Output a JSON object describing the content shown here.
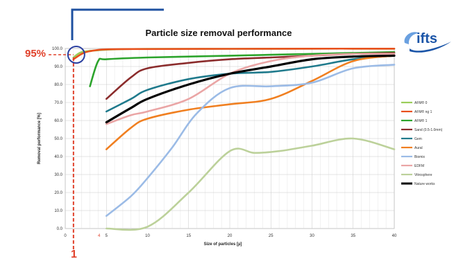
{
  "chart_data": {
    "type": "line",
    "title": "Particle size removal performance",
    "xlabel": "Size of particles [µ]",
    "ylabel": "Removal performance [%]",
    "xlim": [
      0,
      40
    ],
    "ylim": [
      0,
      100
    ],
    "x_ticks": [
      "0",
      "5",
      "10",
      "15",
      "20",
      "25",
      "30",
      "35",
      "40"
    ],
    "y_ticks": [
      "0.0",
      "10.0",
      "20.0",
      "30.0",
      "40.0",
      "50.0",
      "60.0",
      "70.0",
      "80.0",
      "90.0",
      "100.0"
    ],
    "grid": true,
    "legend_position": "right",
    "series": [
      {
        "name": "AFM® 0",
        "color": "#9acd5a",
        "x": [
          1,
          2,
          4,
          6,
          10,
          20,
          30,
          40
        ],
        "y": [
          95,
          98,
          99,
          99.5,
          99.8,
          99.8,
          99.9,
          99.9
        ]
      },
      {
        "name": "AFM® ng 1",
        "color": "#e8501c",
        "x": [
          1,
          2,
          3,
          5,
          10,
          20,
          30,
          40
        ],
        "y": [
          94,
          97,
          98.5,
          99.5,
          99.7,
          99.8,
          99.9,
          99.9
        ]
      },
      {
        "name": "AFM® 1",
        "color": "#2ca42c",
        "x": [
          3,
          4,
          5,
          10,
          20,
          30,
          40
        ],
        "y": [
          79,
          93,
          94,
          95,
          96,
          97,
          98
        ]
      },
      {
        "name": "Sand (0.5-1.0mm)",
        "color": "#8b2c2c",
        "x": [
          5,
          8,
          10,
          15,
          20,
          25,
          30,
          35,
          40
        ],
        "y": [
          72,
          84,
          89,
          92,
          94,
          95,
          96,
          97,
          97.5
        ]
      },
      {
        "name": "Gem",
        "color": "#1f7a8c",
        "x": [
          5,
          8,
          10,
          15,
          20,
          25,
          30,
          35,
          40
        ],
        "y": [
          65,
          72,
          77,
          83,
          86,
          87,
          90,
          94,
          96
        ]
      },
      {
        "name": "Aural",
        "color": "#f07f20",
        "x": [
          5,
          8,
          10,
          15,
          20,
          25,
          30,
          35,
          40
        ],
        "y": [
          44,
          56,
          61,
          66,
          69,
          72,
          82,
          93,
          96
        ]
      },
      {
        "name": "Biomix",
        "color": "#9bbbe6",
        "x": [
          5,
          8,
          10,
          13,
          16,
          20,
          25,
          30,
          35,
          40
        ],
        "y": [
          7,
          18,
          28,
          45,
          64,
          78,
          79,
          81,
          89,
          91
        ]
      },
      {
        "name": "EDFM",
        "color": "#eaa5a5",
        "x": [
          5,
          8,
          10,
          15,
          20,
          25,
          30,
          35,
          40
        ],
        "y": [
          58,
          63,
          65,
          72,
          86,
          93,
          96,
          97,
          97
        ]
      },
      {
        "name": "Vitrosphere",
        "color": "#bcd19a",
        "x": [
          5,
          10,
          15,
          20,
          23,
          26,
          30,
          35,
          40
        ],
        "y": [
          0,
          1,
          20,
          43,
          42,
          43,
          46,
          50,
          44
        ]
      },
      {
        "name": "Nature works",
        "color": "#000000",
        "x": [
          5,
          8,
          10,
          15,
          20,
          25,
          30,
          35,
          40
        ],
        "y": [
          59,
          67,
          72,
          80,
          86,
          90,
          94,
          95.5,
          96
        ]
      }
    ]
  },
  "annotations": {
    "threshold_label": "95%",
    "size_label": "1",
    "small_tick": "4"
  },
  "logo": {
    "text": "ifts"
  }
}
